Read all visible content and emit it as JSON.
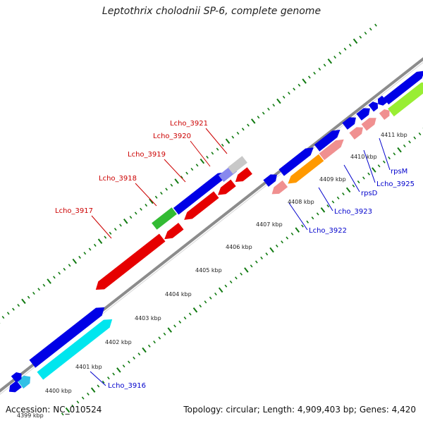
{
  "title": "Leptothrix cholodnii SP-6, complete genome",
  "footer": {
    "accession": "Accession: NC_010524",
    "stats": "Topology: circular; Length: 4,909,403 bp; Genes: 4,420"
  },
  "colors": {
    "backbone": "#8c8c8c",
    "ticks": "#117a11",
    "reverse_label": "#cc0000",
    "forward_label": "#0000cc",
    "cds_blue": "#0000e6",
    "cds_red": "#e60000",
    "cds_green": "#33bb33",
    "cds_grey": "#c8c8c8",
    "cds_cyan": "#00e6ee",
    "cds_cyan_light": "#30c0e6",
    "cds_pink": "#f09090",
    "cds_orange": "#ff9900",
    "cds_lime": "#99ee33",
    "cds_lavender": "#8888ee"
  },
  "tick_labels": [
    "4399 kbp",
    "4400 kbp",
    "4401 kbp",
    "4402 kbp",
    "4403 kbp",
    "4404 kbp",
    "4405 kbp",
    "4406 kbp",
    "4407 kbp",
    "4408 kbp",
    "4409 kbp",
    "4410 kbp",
    "4411 kbp"
  ],
  "gene_labels": {
    "reverse": [
      "Lcho_3917",
      "Lcho_3918",
      "Lcho_3919",
      "Lcho_3920",
      "Lcho_3921"
    ],
    "forward": [
      "Lcho_3916",
      "Lcho_3922",
      "Lcho_3923",
      "rpsD",
      "Lcho_3925",
      "rpsM"
    ]
  }
}
